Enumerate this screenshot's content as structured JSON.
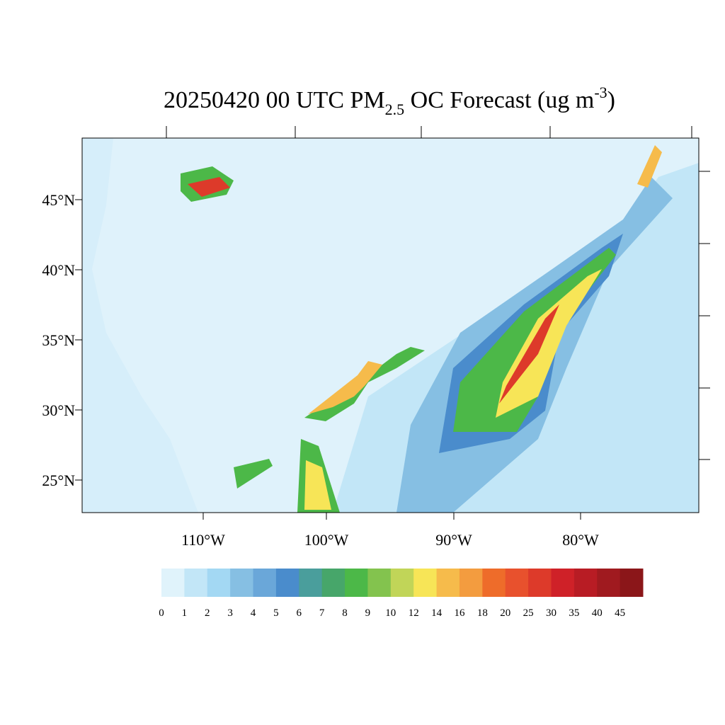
{
  "map": {
    "title": {
      "prefix": "20250420 00 UTC PM",
      "sub": "2.5",
      "middle": " OC Forecast (ug m",
      "sup": "-3",
      "suffix": ")"
    },
    "lat_labels": [
      "45°N",
      "40°N",
      "35°N",
      "30°N",
      "25°N"
    ],
    "lon_labels": [
      "110°W",
      "100°W",
      "90°W",
      "80°W"
    ],
    "colorbar": {
      "levels": [
        0,
        1,
        2,
        3,
        4,
        5,
        6,
        7,
        8,
        9,
        10,
        12,
        14,
        16,
        18,
        20,
        25,
        30,
        35,
        40,
        45
      ],
      "colors": [
        "#e0f3fb",
        "#c2e6f7",
        "#a3d8f3",
        "#86bfe3",
        "#6aa7d9",
        "#4a8ccc",
        "#4a9e9c",
        "#47a66a",
        "#4cb848",
        "#83c34e",
        "#c1d558",
        "#f7e557",
        "#f6bb4b",
        "#f39c3f",
        "#ee6c2a",
        "#e8512d",
        "#dd3a2a",
        "#cf2128",
        "#b81c24",
        "#a01a1f",
        "#8b1619"
      ]
    }
  }
}
